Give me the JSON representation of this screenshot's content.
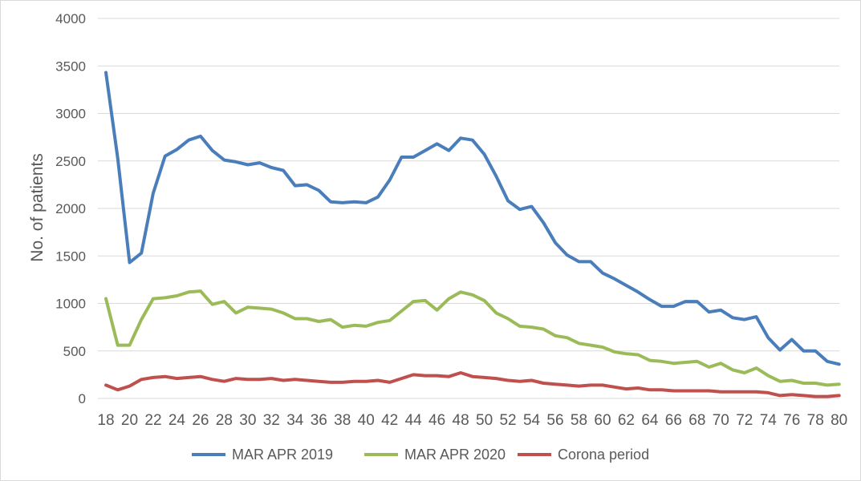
{
  "chart_data": {
    "type": "line",
    "title": "",
    "xlabel": "",
    "ylabel": "No. of patients",
    "ylim": [
      0,
      4000
    ],
    "yticks": [
      0,
      500,
      1000,
      1500,
      2000,
      2500,
      3000,
      3500,
      4000
    ],
    "xticks": [
      18,
      20,
      22,
      24,
      26,
      28,
      30,
      32,
      34,
      36,
      38,
      40,
      42,
      44,
      46,
      48,
      50,
      52,
      54,
      56,
      58,
      60,
      62,
      64,
      66,
      68,
      70,
      72,
      74,
      76,
      78,
      80
    ],
    "grid": true,
    "legend_position": "bottom",
    "x": [
      18,
      19,
      20,
      21,
      22,
      23,
      24,
      25,
      26,
      27,
      28,
      29,
      30,
      31,
      32,
      33,
      34,
      35,
      36,
      37,
      38,
      39,
      40,
      41,
      42,
      43,
      44,
      45,
      46,
      47,
      48,
      49,
      50,
      51,
      52,
      53,
      54,
      55,
      56,
      57,
      58,
      59,
      60,
      61,
      62,
      63,
      64,
      65,
      66,
      67,
      68,
      69,
      70,
      71,
      72,
      73,
      74,
      75,
      76,
      77,
      78,
      79,
      80
    ],
    "series": [
      {
        "name": "MAR APR 2019",
        "color": "#4a7ebb",
        "values": [
          3430,
          2530,
          1430,
          1530,
          2160,
          2550,
          2620,
          2720,
          2760,
          2610,
          2510,
          2490,
          2460,
          2480,
          2430,
          2400,
          2240,
          2250,
          2190,
          2070,
          2060,
          2070,
          2060,
          2120,
          2300,
          2540,
          2540,
          2610,
          2680,
          2610,
          2740,
          2720,
          2570,
          2340,
          2080,
          1990,
          2020,
          1850,
          1640,
          1510,
          1440,
          1440,
          1320,
          1260,
          1190,
          1120,
          1040,
          970,
          970,
          1020,
          1020,
          910,
          930,
          850,
          830,
          860,
          640,
          510,
          620,
          500,
          500,
          390,
          360
        ]
      },
      {
        "name": "MAR APR 2020",
        "color": "#9bbb59",
        "values": [
          1050,
          560,
          560,
          830,
          1050,
          1060,
          1080,
          1120,
          1130,
          990,
          1020,
          900,
          960,
          950,
          940,
          900,
          840,
          840,
          810,
          830,
          750,
          770,
          760,
          800,
          820,
          920,
          1020,
          1030,
          930,
          1050,
          1120,
          1090,
          1030,
          900,
          840,
          760,
          750,
          730,
          660,
          640,
          580,
          560,
          540,
          490,
          470,
          460,
          400,
          390,
          370,
          380,
          390,
          330,
          370,
          300,
          270,
          320,
          240,
          180,
          190,
          160,
          160,
          140,
          150
        ]
      },
      {
        "name": "Corona period",
        "color": "#c0504d",
        "values": [
          140,
          90,
          130,
          200,
          220,
          230,
          210,
          220,
          230,
          200,
          180,
          210,
          200,
          200,
          210,
          190,
          200,
          190,
          180,
          170,
          170,
          180,
          180,
          190,
          170,
          210,
          250,
          240,
          240,
          230,
          270,
          230,
          220,
          210,
          190,
          180,
          190,
          160,
          150,
          140,
          130,
          140,
          140,
          120,
          100,
          110,
          90,
          90,
          80,
          80,
          80,
          80,
          70,
          70,
          70,
          70,
          60,
          30,
          40,
          30,
          20,
          20,
          30
        ]
      }
    ]
  }
}
